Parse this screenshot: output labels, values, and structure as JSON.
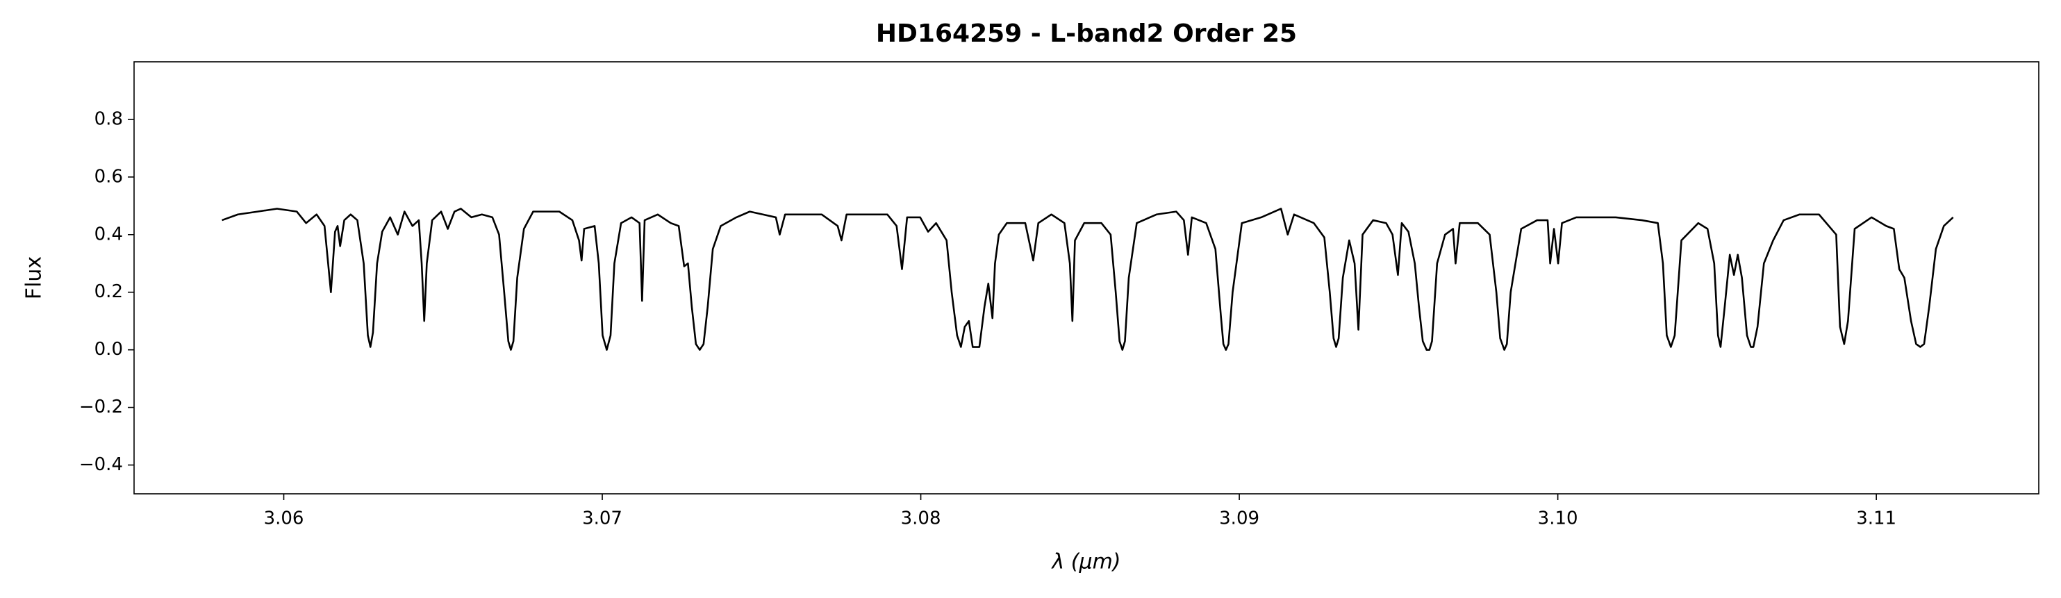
{
  "chart_data": {
    "type": "line",
    "title": "HD164259 - L-band2 Order 25",
    "x_label": "λ (μm)",
    "y_label": "Flux",
    "x": [
      3.05806,
      3.05856,
      3.05918,
      3.05979,
      3.06041,
      3.0607,
      3.06103,
      3.06128,
      3.06148,
      3.06161,
      3.06169,
      3.06177,
      3.0619,
      3.0621,
      3.06231,
      3.06251,
      3.06264,
      3.06272,
      3.0628,
      3.06293,
      3.06309,
      3.06334,
      3.06358,
      3.06379,
      3.06404,
      3.06424,
      3.06433,
      3.06441,
      3.06449,
      3.06466,
      3.06494,
      3.06515,
      3.06536,
      3.06556,
      3.06589,
      3.06622,
      3.06655,
      3.06676,
      3.06692,
      3.06705,
      3.06713,
      3.06721,
      3.06733,
      3.06754,
      3.06783,
      3.06824,
      3.06865,
      3.06906,
      3.06927,
      3.06935,
      3.06943,
      3.06976,
      3.06989,
      3.07001,
      3.07014,
      3.07026,
      3.07038,
      3.07059,
      3.07092,
      3.07117,
      3.07125,
      3.07133,
      3.07174,
      3.07215,
      3.0724,
      3.07257,
      3.07269,
      3.07281,
      3.07294,
      3.07306,
      3.07318,
      3.07331,
      3.07347,
      3.07372,
      3.07421,
      3.07463,
      3.07504,
      3.07545,
      3.07557,
      3.07574,
      3.07627,
      3.07689,
      3.07739,
      3.07751,
      3.07767,
      3.07833,
      3.07895,
      3.07924,
      3.07941,
      3.07957,
      3.07998,
      3.08023,
      3.08048,
      3.08081,
      3.08097,
      3.08114,
      3.08126,
      3.08138,
      3.08151,
      3.08163,
      3.08184,
      3.082,
      3.08212,
      3.08225,
      3.08233,
      3.08245,
      3.0827,
      3.08328,
      3.08353,
      3.08369,
      3.0841,
      3.08451,
      3.08468,
      3.08476,
      3.08484,
      3.08513,
      3.08567,
      3.08596,
      3.08612,
      3.08624,
      3.08633,
      3.08641,
      3.08653,
      3.08678,
      3.0874,
      3.08802,
      3.08826,
      3.08839,
      3.08851,
      3.08896,
      3.08925,
      3.08942,
      3.0895,
      3.08958,
      3.08966,
      3.08979,
      3.09008,
      3.09069,
      3.09131,
      3.09152,
      3.09172,
      3.09234,
      3.09267,
      3.09284,
      3.09296,
      3.09304,
      3.09312,
      3.09325,
      3.09345,
      3.09362,
      3.09374,
      3.09387,
      3.0942,
      3.09461,
      3.09481,
      3.09498,
      3.0951,
      3.09531,
      3.09551,
      3.09564,
      3.09576,
      3.09588,
      3.09597,
      3.09605,
      3.09621,
      3.09646,
      3.09671,
      3.09679,
      3.09692,
      3.09749,
      3.09786,
      3.09807,
      3.09819,
      3.09832,
      3.0984,
      3.09852,
      3.09885,
      3.09935,
      3.09968,
      3.09976,
      3.09988,
      3.10001,
      3.10013,
      3.10058,
      3.10182,
      3.10264,
      3.10314,
      3.1033,
      3.10342,
      3.10355,
      3.10367,
      3.10388,
      3.10441,
      3.1047,
      3.10491,
      3.10503,
      3.10511,
      3.10524,
      3.1054,
      3.10553,
      3.10565,
      3.10578,
      3.10594,
      3.10606,
      3.10614,
      3.10627,
      3.10647,
      3.10676,
      3.10709,
      3.10759,
      3.1082,
      3.10874,
      3.10886,
      3.10899,
      3.10911,
      3.10932,
      3.10985,
      3.11031,
      3.11055,
      3.11072,
      3.11088,
      3.11109,
      3.11125,
      3.11138,
      3.1115,
      3.11166,
      3.11187,
      3.11212,
      3.11241
    ],
    "values": [
      0.45,
      0.47,
      0.48,
      0.49,
      0.48,
      0.44,
      0.47,
      0.43,
      0.2,
      0.41,
      0.43,
      0.36,
      0.45,
      0.47,
      0.45,
      0.3,
      0.05,
      0.01,
      0.06,
      0.3,
      0.41,
      0.46,
      0.4,
      0.48,
      0.43,
      0.45,
      0.3,
      0.1,
      0.3,
      0.45,
      0.48,
      0.42,
      0.48,
      0.49,
      0.46,
      0.47,
      0.46,
      0.4,
      0.2,
      0.03,
      0.0,
      0.03,
      0.25,
      0.42,
      0.48,
      0.48,
      0.48,
      0.45,
      0.38,
      0.31,
      0.42,
      0.43,
      0.3,
      0.05,
      0.0,
      0.05,
      0.3,
      0.44,
      0.46,
      0.44,
      0.17,
      0.45,
      0.47,
      0.44,
      0.43,
      0.29,
      0.3,
      0.15,
      0.02,
      0.0,
      0.02,
      0.15,
      0.35,
      0.43,
      0.46,
      0.48,
      0.47,
      0.46,
      0.4,
      0.47,
      0.47,
      0.47,
      0.43,
      0.38,
      0.47,
      0.47,
      0.47,
      0.43,
      0.28,
      0.46,
      0.46,
      0.41,
      0.44,
      0.38,
      0.2,
      0.05,
      0.01,
      0.08,
      0.1,
      0.01,
      0.01,
      0.15,
      0.23,
      0.11,
      0.3,
      0.4,
      0.44,
      0.44,
      0.31,
      0.44,
      0.47,
      0.44,
      0.3,
      0.1,
      0.38,
      0.44,
      0.44,
      0.4,
      0.2,
      0.03,
      0.0,
      0.03,
      0.25,
      0.44,
      0.47,
      0.48,
      0.45,
      0.33,
      0.46,
      0.44,
      0.35,
      0.12,
      0.02,
      0.0,
      0.02,
      0.2,
      0.44,
      0.46,
      0.49,
      0.4,
      0.47,
      0.44,
      0.39,
      0.2,
      0.04,
      0.01,
      0.04,
      0.25,
      0.38,
      0.3,
      0.07,
      0.4,
      0.45,
      0.44,
      0.4,
      0.26,
      0.44,
      0.41,
      0.3,
      0.15,
      0.03,
      0.0,
      0.0,
      0.03,
      0.3,
      0.4,
      0.42,
      0.3,
      0.44,
      0.44,
      0.4,
      0.2,
      0.04,
      0.0,
      0.02,
      0.2,
      0.42,
      0.45,
      0.45,
      0.3,
      0.42,
      0.3,
      0.44,
      0.46,
      0.46,
      0.45,
      0.44,
      0.3,
      0.05,
      0.01,
      0.05,
      0.38,
      0.44,
      0.42,
      0.3,
      0.05,
      0.01,
      0.15,
      0.33,
      0.26,
      0.33,
      0.25,
      0.05,
      0.01,
      0.01,
      0.08,
      0.3,
      0.38,
      0.45,
      0.47,
      0.47,
      0.4,
      0.08,
      0.02,
      0.1,
      0.42,
      0.46,
      0.43,
      0.42,
      0.28,
      0.25,
      0.1,
      0.02,
      0.01,
      0.02,
      0.15,
      0.35,
      0.43,
      0.46
    ],
    "color": "#000000",
    "xlim": [
      3.0553,
      3.1151
    ],
    "ylim": [
      -0.5,
      1.0
    ],
    "xticks": [
      3.06,
      3.07,
      3.08,
      3.09,
      {
        "value": 3.1,
        "label": "3.10"
      },
      3.11
    ],
    "yticks": [
      {
        "value": -0.4,
        "label": "−0.4"
      },
      {
        "value": -0.2,
        "label": "−0.2"
      },
      {
        "value": 0,
        "label": "0.0"
      },
      0.2,
      0.4,
      0.6,
      0.8
    ],
    "grid": false
  }
}
